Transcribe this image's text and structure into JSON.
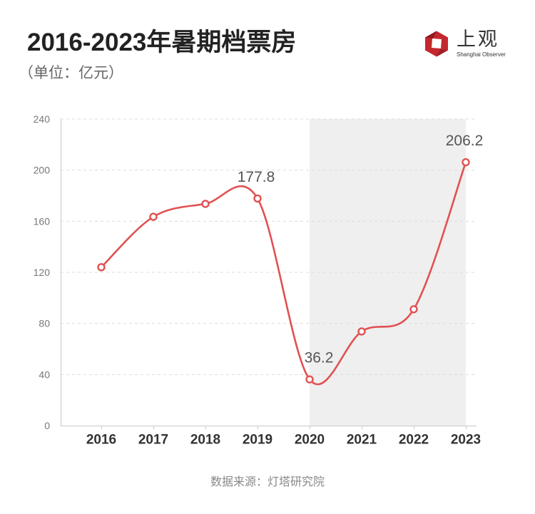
{
  "logo": {
    "icon": "shanghai-observer-logo-icon",
    "name": "上观",
    "tagline": "Shanghai Observer"
  },
  "chart_data": {
    "type": "line",
    "title": "2016-2023年暑期档票房",
    "subtitle": "（单位：亿元）",
    "categories": [
      "2016",
      "2017",
      "2018",
      "2019",
      "2020",
      "2021",
      "2022",
      "2023"
    ],
    "series": [
      {
        "values": [
          124.0,
          163.5,
          173.6,
          177.8,
          36.2,
          73.7,
          91.1,
          206.2
        ],
        "color": "#e05252",
        "smooth": true
      }
    ],
    "data_labels": [
      null,
      null,
      null,
      "177.8",
      "36.2",
      null,
      null,
      "206.2"
    ],
    "ylim": [
      0,
      240
    ],
    "yticks": [
      0,
      40,
      80,
      120,
      160,
      200,
      240
    ],
    "highlight_range": [
      2020,
      2023
    ],
    "highlight_color": "#efefef",
    "grid": true
  },
  "footer": {
    "source": "数据来源：灯塔研究院"
  }
}
